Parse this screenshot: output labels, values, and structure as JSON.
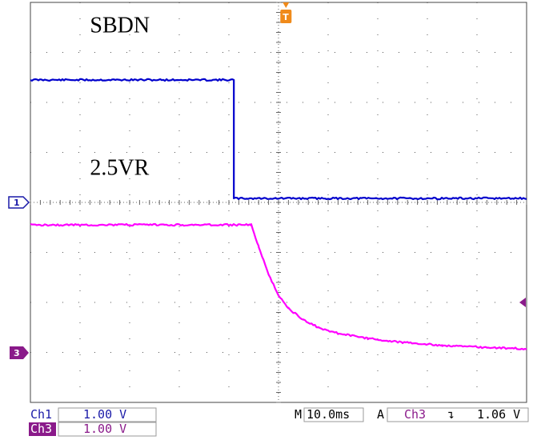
{
  "chart_data": {
    "type": "line",
    "x_unit": "div",
    "y_unit": "div",
    "x_divisions": 10,
    "y_divisions": 8,
    "grid": true,
    "series": [
      {
        "channel": "1",
        "color": "#0000cc",
        "points": [
          [
            0,
            6.45
          ],
          [
            4.1,
            6.45
          ],
          [
            4.1,
            4.08
          ],
          [
            10,
            4.08
          ]
        ]
      },
      {
        "channel": "3",
        "color": "#ff00ff",
        "points": [
          [
            0,
            3.55
          ],
          [
            4.45,
            3.55
          ],
          [
            4.6,
            3.12
          ],
          [
            4.8,
            2.55
          ],
          [
            5.0,
            2.15
          ],
          [
            5.2,
            1.88
          ],
          [
            5.5,
            1.65
          ],
          [
            5.8,
            1.5
          ],
          [
            6.2,
            1.38
          ],
          [
            6.8,
            1.28
          ],
          [
            7.5,
            1.2
          ],
          [
            8.3,
            1.14
          ],
          [
            9.2,
            1.1
          ],
          [
            10,
            1.07
          ]
        ]
      }
    ],
    "annotations": [
      {
        "id": "sbdn",
        "text": "SBDN",
        "x_div": 1.2,
        "y_div": 7.4
      },
      {
        "id": "vr",
        "text": "2.5VR",
        "x_div": 1.2,
        "y_div": 4.55
      }
    ],
    "markers": {
      "ch1_label": "1",
      "ch1_level_div": 4.0,
      "ch3_label": "3",
      "ch3_level_div": 0.0,
      "trigger_label": "T",
      "trigger_x_div": 5.15,
      "trigger_level_div": 1.06
    },
    "status": {
      "ch1_name": "Ch1",
      "ch1_scale": "1.00 V",
      "ch3_name": "Ch3",
      "ch3_scale": "1.00 V",
      "timebase_prefix": "M",
      "timebase": "10.0ms",
      "trigger_mode": "A",
      "trigger_source": "Ch3",
      "trigger_slope_symbol": "↴",
      "trigger_level": "1.06 V"
    }
  }
}
